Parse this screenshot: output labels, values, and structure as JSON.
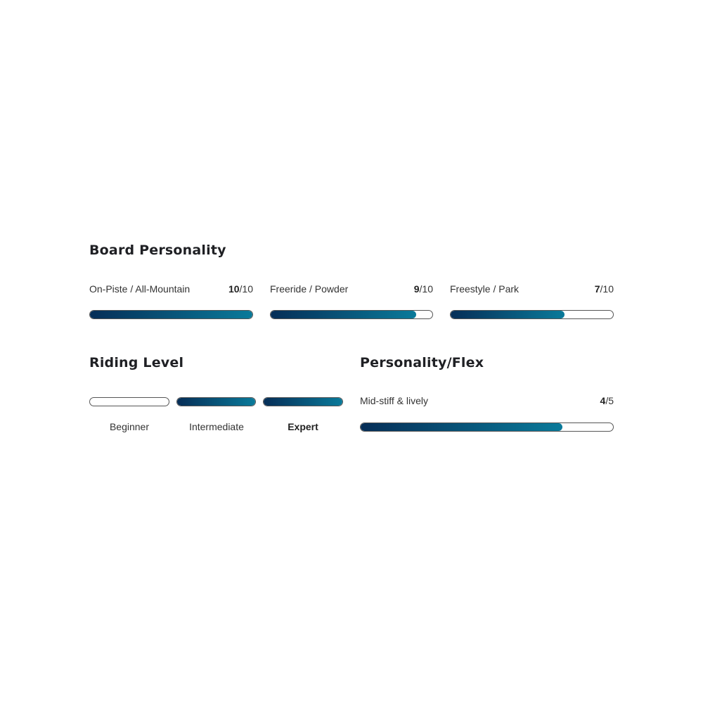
{
  "board_personality": {
    "title": "Board Personality",
    "items": [
      {
        "label": "On-Piste / All-Mountain",
        "value": "10",
        "max": "/10",
        "fraction": 1.0
      },
      {
        "label": "Freeride / Powder",
        "value": "9",
        "max": "/10",
        "fraction": 0.9
      },
      {
        "label": "Freestyle / Park",
        "value": "7",
        "max": "/10",
        "fraction": 0.7
      }
    ]
  },
  "riding_level": {
    "title": "Riding Level",
    "levels": [
      {
        "label": "Beginner",
        "active": false
      },
      {
        "label": "Intermediate",
        "active": true
      },
      {
        "label": "Expert",
        "active": true,
        "emphasized": true
      }
    ]
  },
  "flex": {
    "title": "Personality/Flex",
    "label": "Mid-stiff & lively",
    "value": "4",
    "max": "/5",
    "fraction": 0.8
  },
  "colors": {
    "gradient_start": "#062e57",
    "gradient_end": "#0a7a9a"
  }
}
